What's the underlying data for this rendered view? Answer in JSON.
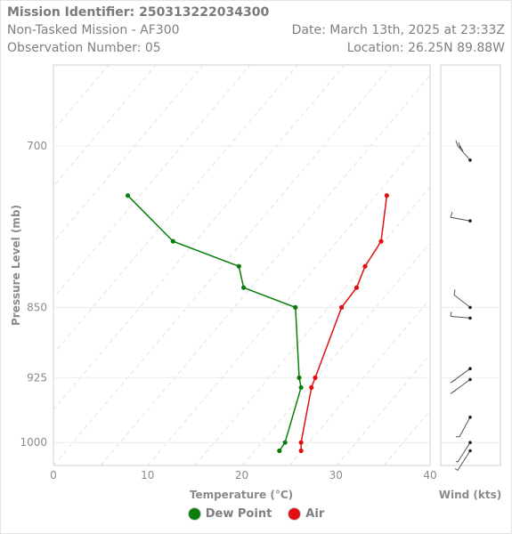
{
  "header": {
    "mission_identifier": "Mission Identifier: 250313222034300",
    "mission_name": "Non-Tasked Mission - AF300",
    "observation_number": "Observation Number: 05",
    "date": "Date: March 13th, 2025 at 23:33Z",
    "location": "Location: 26.25N 89.88W"
  },
  "legend": {
    "dewpoint_label": "Dew Point",
    "air_label": "Air"
  },
  "colors": {
    "dewpoint": "#0a7d0a",
    "air": "#e01010"
  },
  "chart_data": {
    "type": "line",
    "xlabel": "Temperature (°C)",
    "ylabel": "Pressure Level (mb)",
    "wind_label": "Wind (kts)",
    "xlim": [
      0,
      40
    ],
    "x_ticks": [
      0,
      10,
      20,
      30,
      40
    ],
    "y_ticks": [
      700,
      850,
      925,
      1000
    ],
    "ylim": [
      635,
      1028
    ],
    "y_scale": "log",
    "skew_isotherms": true,
    "series": [
      {
        "name": "Dew Point",
        "points": [
          {
            "p": 743,
            "t": 7.9
          },
          {
            "p": 785,
            "t": 12.7
          },
          {
            "p": 809,
            "t": 19.7
          },
          {
            "p": 830,
            "t": 20.2
          },
          {
            "p": 850,
            "t": 25.7
          },
          {
            "p": 925,
            "t": 26.1
          },
          {
            "p": 936,
            "t": 26.3
          },
          {
            "p": 1000,
            "t": 24.6
          },
          {
            "p": 1010,
            "t": 24.0
          }
        ]
      },
      {
        "name": "Air",
        "points": [
          {
            "p": 743,
            "t": 35.4
          },
          {
            "p": 785,
            "t": 34.8
          },
          {
            "p": 809,
            "t": 33.1
          },
          {
            "p": 830,
            "t": 32.2
          },
          {
            "p": 850,
            "t": 30.6
          },
          {
            "p": 925,
            "t": 27.8
          },
          {
            "p": 936,
            "t": 27.4
          },
          {
            "p": 1000,
            "t": 26.3
          },
          {
            "p": 1010,
            "t": 26.3
          }
        ]
      }
    ],
    "wind": [
      {
        "p": 712,
        "type": "barb"
      },
      {
        "p": 766,
        "type": "barb"
      },
      {
        "p": 850,
        "type": "barb"
      },
      {
        "p": 861,
        "type": "barb"
      },
      {
        "p": 915,
        "type": "barb"
      },
      {
        "p": 927,
        "type": "barb"
      },
      {
        "p": 970,
        "type": "barb"
      },
      {
        "p": 1000,
        "type": "barb"
      },
      {
        "p": 1010,
        "type": "barb"
      }
    ]
  }
}
